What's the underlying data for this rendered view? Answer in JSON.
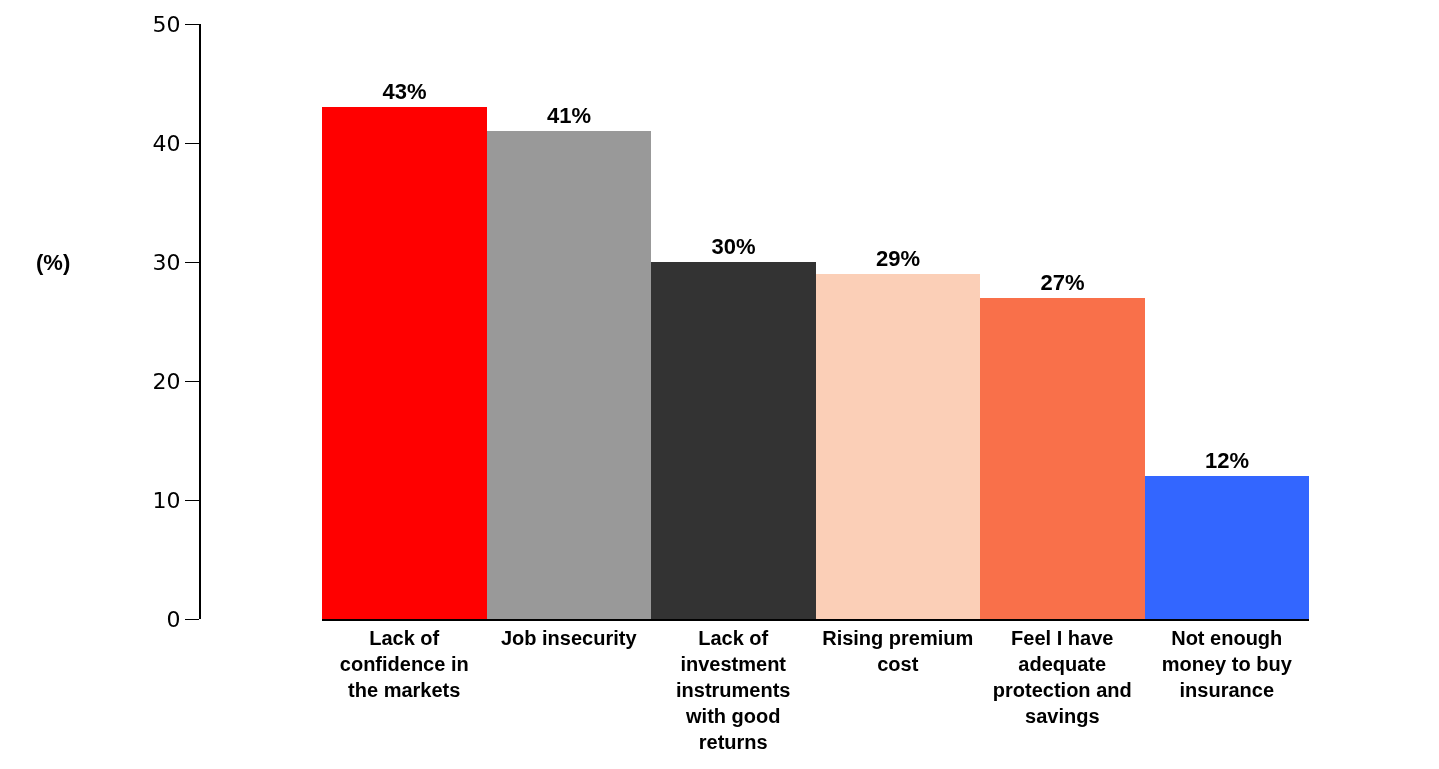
{
  "chart_data": {
    "type": "bar",
    "ylabel": "(%)",
    "categories": [
      "Lack of confidence in the markets",
      "Job insecurity",
      "Lack of investment instruments with good returns",
      "Rising premium cost",
      "Feel I have adequate protection and savings",
      "Not enough money to buy insurance"
    ],
    "values": [
      43,
      41,
      30,
      29,
      27,
      12
    ],
    "value_labels": [
      "43%",
      "41%",
      "30%",
      "29%",
      "27%",
      "12%"
    ],
    "colors": [
      "#ff0000",
      "#999999",
      "#333333",
      "#fbcfb7",
      "#f9704a",
      "#3366ff"
    ],
    "ylim": [
      0,
      50
    ],
    "yticks": [
      0,
      10,
      20,
      30,
      40,
      50
    ]
  }
}
